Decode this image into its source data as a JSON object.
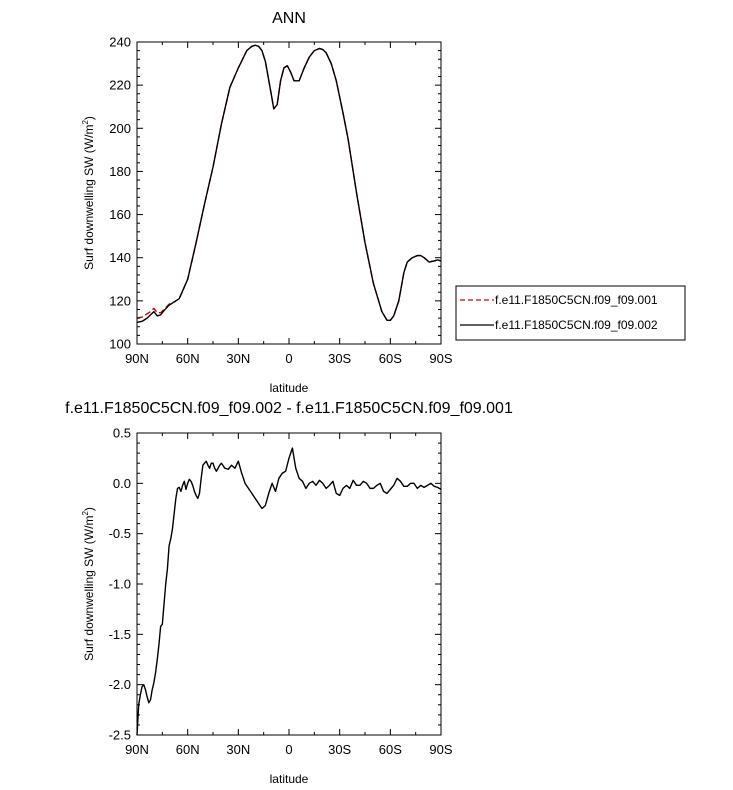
{
  "chart_data": [
    {
      "type": "line",
      "title": "ANN",
      "xlabel": "latitude",
      "ylabel": "Surf downwelling SW (W/m",
      "ylabel_sup": "2",
      "ylabel_close": ")",
      "xlim": [
        90,
        -90
      ],
      "ylim": [
        100,
        240
      ],
      "x_ticks": [
        90,
        60,
        30,
        0,
        -30,
        -60,
        -90
      ],
      "x_tick_labels": [
        "90N",
        "60N",
        "30N",
        "0",
        "30S",
        "60S",
        "90S"
      ],
      "y_ticks": [
        100,
        120,
        140,
        160,
        180,
        200,
        220,
        240
      ],
      "y_tick_labels": [
        "100",
        "120",
        "140",
        "160",
        "180",
        "200",
        "220",
        "240"
      ],
      "legend_position": "right",
      "series": [
        {
          "name": "f.e11.F1850C5CN.f09_f09.001",
          "color": "#cc0000",
          "dash": "dashed",
          "x": [
            90,
            87,
            84,
            82,
            80,
            78,
            76,
            74,
            71,
            68,
            65,
            60,
            55,
            50,
            45,
            40,
            35,
            30,
            25,
            22,
            20,
            18,
            16,
            14,
            11,
            9,
            7,
            5,
            3,
            1,
            -1,
            -3,
            -6,
            -9,
            -12,
            -15,
            -18,
            -20,
            -22,
            -25,
            -28,
            -32,
            -35,
            -40,
            -45,
            -50,
            -55,
            -58,
            -60,
            -62,
            -65,
            -68,
            -70,
            -73,
            -76,
            -78,
            -80,
            -83,
            -86,
            -88,
            -90
          ],
          "y": [
            112,
            112.5,
            114,
            115,
            116.5,
            114.5,
            114.5,
            116,
            118.5,
            119.5,
            121,
            130,
            147,
            165,
            182,
            202,
            219,
            228,
            236,
            238,
            238.5,
            238,
            236,
            231,
            218,
            209,
            211,
            222,
            228,
            229,
            226,
            222,
            222,
            228,
            233,
            236,
            237,
            236.5,
            235,
            230,
            222,
            207,
            195,
            170,
            147,
            128,
            115,
            111,
            111,
            113,
            120,
            133,
            138,
            140,
            141,
            141,
            140,
            138,
            138.5,
            139,
            138.5
          ]
        },
        {
          "name": "f.e11.F1850C5CN.f09_f09.002",
          "color": "#000000",
          "dash": "solid",
          "x": [
            90,
            87,
            84,
            82,
            80,
            78,
            76,
            74,
            71,
            68,
            65,
            60,
            55,
            50,
            45,
            40,
            35,
            30,
            25,
            22,
            20,
            18,
            16,
            14,
            11,
            9,
            7,
            5,
            3,
            1,
            -1,
            -3,
            -6,
            -9,
            -12,
            -15,
            -18,
            -20,
            -22,
            -25,
            -28,
            -32,
            -35,
            -40,
            -45,
            -50,
            -55,
            -58,
            -60,
            -62,
            -65,
            -68,
            -70,
            -73,
            -76,
            -78,
            -80,
            -83,
            -86,
            -88,
            -90
          ],
          "y": [
            110,
            110.5,
            112,
            113.5,
            115,
            113,
            113.5,
            115.5,
            118,
            119.5,
            121,
            130,
            147,
            165,
            182,
            202,
            219,
            228,
            236,
            238,
            238.5,
            238,
            236,
            231,
            218,
            209,
            211,
            222,
            228,
            229,
            226,
            222,
            222,
            228,
            233,
            236,
            237,
            236.5,
            235,
            230,
            222,
            207,
            195,
            170,
            147,
            128,
            115,
            111,
            111,
            113,
            120,
            133,
            138,
            140,
            141,
            141,
            140,
            138,
            138.5,
            139,
            138.5
          ]
        }
      ]
    },
    {
      "type": "line",
      "title": "f.e11.F1850C5CN.f09_f09.002 - f.e11.F1850C5CN.f09_f09.001",
      "xlabel": "latitude",
      "ylabel": "Surf downwelling SW (W/m",
      "ylabel_sup": "2",
      "ylabel_close": ")",
      "xlim": [
        90,
        -90
      ],
      "ylim": [
        -2.5,
        0.5
      ],
      "x_ticks": [
        90,
        60,
        30,
        0,
        -30,
        -60,
        -90
      ],
      "x_tick_labels": [
        "90N",
        "60N",
        "30N",
        "0",
        "30S",
        "60S",
        "90S"
      ],
      "y_ticks": [
        -2.5,
        -2.0,
        -1.5,
        -1.0,
        -0.5,
        0.0,
        0.5
      ],
      "y_tick_labels": [
        "-2.5",
        "-2.0",
        "-1.5",
        "-1.0",
        "-0.5",
        "0.0",
        "0.5"
      ],
      "series": [
        {
          "name": "",
          "color": "#000000",
          "dash": "solid",
          "x": [
            90,
            89,
            88,
            87,
            86,
            85,
            84,
            83,
            82,
            81,
            80,
            79,
            78,
            77,
            76,
            75,
            74,
            73,
            72,
            71,
            70,
            69,
            68,
            67,
            66,
            65,
            64,
            63,
            62,
            61,
            60,
            59,
            58,
            57,
            56,
            55,
            54,
            53,
            52,
            51,
            50,
            49,
            48,
            47,
            46,
            45,
            44,
            43,
            42,
            41,
            40,
            38,
            36,
            34,
            32,
            30,
            28,
            26,
            24,
            22,
            20,
            18,
            16,
            14,
            12,
            10,
            8,
            6,
            4,
            2,
            0,
            -2,
            -4,
            -6,
            -8,
            -10,
            -12,
            -14,
            -16,
            -18,
            -20,
            -22,
            -24,
            -26,
            -28,
            -30,
            -32,
            -34,
            -36,
            -38,
            -40,
            -42,
            -44,
            -46,
            -48,
            -50,
            -52,
            -54,
            -56,
            -58,
            -60,
            -62,
            -64,
            -66,
            -68,
            -70,
            -72,
            -74,
            -76,
            -78,
            -80,
            -82,
            -84,
            -86,
            -88,
            -90
          ],
          "y": [
            -2.5,
            -2.2,
            -2.1,
            -2.02,
            -2.0,
            -2.05,
            -2.12,
            -2.18,
            -2.15,
            -2.05,
            -1.98,
            -1.88,
            -1.75,
            -1.6,
            -1.42,
            -1.4,
            -1.2,
            -1.0,
            -0.85,
            -0.62,
            -0.55,
            -0.45,
            -0.3,
            -0.15,
            -0.05,
            -0.04,
            -0.08,
            -0.02,
            0.02,
            -0.06,
            0.0,
            0.04,
            0.02,
            -0.02,
            -0.08,
            -0.12,
            -0.15,
            -0.1,
            0.05,
            0.18,
            0.2,
            0.22,
            0.18,
            0.15,
            0.2,
            0.2,
            0.15,
            0.12,
            0.15,
            0.18,
            0.2,
            0.15,
            0.14,
            0.18,
            0.15,
            0.22,
            0.1,
            0.0,
            -0.05,
            -0.1,
            -0.15,
            -0.2,
            -0.25,
            -0.22,
            -0.1,
            0.0,
            -0.08,
            0.05,
            0.1,
            0.12,
            0.25,
            0.35,
            0.15,
            0.05,
            0.02,
            -0.05,
            0.0,
            0.02,
            -0.02,
            0.03,
            0.0,
            -0.05,
            -0.02,
            0.02,
            -0.1,
            -0.12,
            -0.05,
            -0.02,
            -0.05,
            0.03,
            -0.02,
            -0.02,
            0.02,
            0.0,
            -0.05,
            -0.05,
            -0.02,
            0.0,
            -0.08,
            -0.1,
            -0.06,
            -0.02,
            0.05,
            0.02,
            -0.03,
            -0.03,
            0.0,
            0.0,
            -0.05,
            -0.02,
            -0.04,
            -0.02,
            0.0,
            -0.03,
            -0.04,
            -0.06
          ]
        }
      ]
    }
  ]
}
